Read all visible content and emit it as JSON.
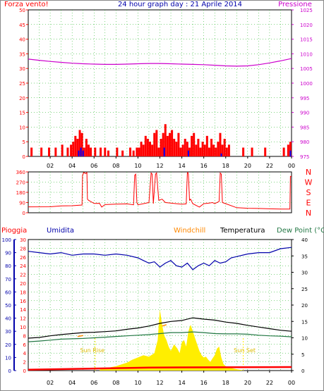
{
  "title": "24 hour graph day : 21 Aprile 2014",
  "x_ticks": [
    "02",
    "04",
    "06",
    "08",
    "10",
    "12",
    "14",
    "16",
    "18",
    "20",
    "22",
    "00"
  ],
  "colors": {
    "wind": "#ff0000",
    "gust": "#0000ff",
    "pressure": "#cc00cc",
    "rain_axis": "#ff0000",
    "humidity": "#0000aa",
    "windchill": "#ff8800",
    "temperature": "#000000",
    "dewpoint": "#227744",
    "solar": "#ffee00",
    "grid": "#00aa00"
  },
  "chart_data": [
    {
      "type": "line",
      "title": "24 hour graph day : 21 Aprile 2014",
      "left_label": "Forza vento!",
      "right_label": "Pressione",
      "left_ticks": [
        "0",
        "5",
        "10",
        "15",
        "20",
        "25",
        "30",
        "35",
        "40",
        "45",
        "50"
      ],
      "right_ticks": [
        "975",
        "980",
        "985",
        "990",
        "995",
        "1000",
        "1005",
        "1010",
        "1015",
        "1020",
        "1025"
      ],
      "ylim_left": [
        0,
        50
      ],
      "ylim_right": [
        975,
        1025
      ],
      "xlim": [
        0,
        24
      ],
      "series": [
        {
          "name": "Pressione",
          "axis": "right",
          "x": [
            0,
            1,
            2,
            3,
            4,
            5,
            6,
            7,
            8,
            9,
            10,
            11,
            12,
            13,
            14,
            15,
            16,
            17,
            18,
            19,
            20,
            21,
            22,
            23,
            24
          ],
          "values": [
            1008.2,
            1007.8,
            1007.4,
            1007.1,
            1006.8,
            1006.6,
            1006.5,
            1006.4,
            1006.4,
            1006.5,
            1006.6,
            1006.7,
            1006.7,
            1006.6,
            1006.5,
            1006.4,
            1006.3,
            1006.1,
            1005.9,
            1005.8,
            1005.9,
            1006.3,
            1006.9,
            1007.6,
            1008.4
          ]
        },
        {
          "axis": "left",
          "style": "bars",
          "x": [
            0.3,
            1.2,
            1.9,
            2.5,
            3.1,
            3.6,
            3.9,
            4.1,
            4.3,
            4.5,
            4.7,
            4.9,
            5.1,
            5.3,
            5.5,
            5.7,
            6.1,
            6.6,
            7.0,
            7.3,
            8.1,
            8.6,
            9.3,
            9.6,
            9.9,
            10.1,
            10.3,
            10.5,
            10.7,
            10.9,
            11.1,
            11.3,
            11.5,
            11.7,
            11.9,
            12.1,
            12.3,
            12.5,
            12.7,
            12.9,
            13.1,
            13.3,
            13.5,
            13.7,
            13.9,
            14.1,
            14.3,
            14.5,
            14.7,
            14.9,
            15.1,
            15.3,
            15.5,
            15.7,
            15.9,
            16.1,
            16.3,
            16.5,
            16.7,
            16.9,
            17.1,
            17.3,
            17.5,
            17.7,
            17.9,
            18.1,
            18.3,
            19.6,
            20.4,
            21.6,
            23.3,
            23.7,
            23.9
          ],
          "values": [
            3,
            3,
            3,
            3,
            4,
            3,
            4,
            5,
            7,
            6,
            9,
            8,
            3,
            6,
            4,
            3,
            3,
            3,
            3,
            2,
            3,
            2,
            3,
            2,
            3,
            3,
            5,
            4,
            7,
            6,
            5,
            4,
            8,
            9,
            3,
            6,
            8,
            11,
            7,
            8,
            9,
            6,
            5,
            8,
            3,
            4,
            6,
            5,
            3,
            7,
            8,
            4,
            6,
            3,
            5,
            4,
            7,
            3,
            6,
            4,
            3,
            5,
            8,
            4,
            6,
            3,
            4,
            3,
            3,
            3,
            3,
            4,
            5
          ]
        },
        {
          "axis": "left",
          "style": "bars",
          "x": [
            4.6,
            4.8,
            5.0,
            12.4,
            14.6,
            17.6,
            23.9
          ],
          "values": [
            2,
            3,
            2,
            3,
            2,
            1,
            2
          ]
        }
      ]
    },
    {
      "type": "line",
      "right_label": [
        "N",
        "W",
        "S",
        "E",
        "N"
      ],
      "left_ticks": [
        "0",
        "90",
        "180",
        "270",
        "360"
      ],
      "ylim": [
        0,
        360
      ],
      "xlim": [
        0,
        24
      ],
      "series": [
        {
          "x": [
            0.0,
            2.0,
            3.0,
            4.0,
            4.9,
            4.95,
            5.0,
            5.05,
            5.25,
            5.35,
            5.4,
            5.5,
            6.0,
            6.5,
            6.7,
            7.0,
            8.0,
            9.0,
            9.6,
            9.7,
            9.8,
            9.9,
            10.0,
            10.5,
            11.0,
            11.2,
            11.3,
            11.4,
            11.6,
            11.7,
            11.9,
            12.2,
            12.5,
            13.0,
            13.5,
            14.0,
            14.4,
            14.5,
            14.55,
            14.6,
            14.7,
            14.8,
            15.0,
            15.4,
            15.6,
            16.0,
            16.5,
            16.8,
            17.0,
            17.4,
            17.5,
            17.6,
            17.7,
            18.0,
            19.0,
            20.0,
            21.0,
            22.0,
            23.0,
            23.85,
            23.9,
            24.0
          ],
          "values": [
            52,
            53,
            60,
            62,
            68,
            330,
            340,
            355,
            345,
            355,
            120,
            110,
            82,
            83,
            50,
            72,
            76,
            78,
            70,
            330,
            340,
            90,
            70,
            80,
            90,
            350,
            340,
            80,
            340,
            350,
            110,
            120,
            90,
            85,
            80,
            75,
            78,
            350,
            355,
            340,
            110,
            120,
            80,
            60,
            50,
            80,
            85,
            90,
            80,
            100,
            350,
            340,
            90,
            80,
            45,
            40,
            38,
            35,
            33,
            33,
            320,
            320
          ]
        }
      ]
    },
    {
      "type": "line",
      "left_label": "Pioggia",
      "labels": [
        "Umidita",
        "Windchill",
        "Temperatura",
        "Dew Point (°C"
      ],
      "rain_ticks": [
        "0",
        "2",
        "4",
        "6",
        "8",
        "10",
        "12",
        "14",
        "16",
        "18",
        "20",
        "22",
        "24",
        "26",
        "28",
        "30"
      ],
      "humidity_ticks": [
        "0",
        "10",
        "20",
        "30",
        "40",
        "50",
        "60",
        "70",
        "80",
        "90",
        "100"
      ],
      "temp_ticks": [
        "0",
        "5",
        "10",
        "15",
        "20",
        "25",
        "30",
        "35",
        "40"
      ],
      "sunrise_label": "Sun Rise",
      "sunset_label": "Sun Set",
      "ylim_rain": [
        0,
        30
      ],
      "ylim_humidity": [
        0,
        100
      ],
      "ylim_temp": [
        0,
        40
      ],
      "xlim": [
        0,
        24
      ],
      "series": [
        {
          "name": "Umidita",
          "axis": "humidity",
          "x": [
            0,
            1,
            2,
            3,
            4,
            5,
            6,
            7,
            8,
            9,
            10,
            10.5,
            11,
            11.5,
            12,
            12.5,
            13,
            13.5,
            14,
            14.5,
            15,
            15.5,
            16,
            16.5,
            17,
            17.5,
            18,
            18.5,
            19,
            20,
            21,
            22,
            23,
            24
          ],
          "values": [
            91,
            90,
            89,
            90,
            88,
            89,
            89,
            88,
            89,
            88,
            86,
            84,
            82,
            83,
            79,
            82,
            84,
            80,
            79,
            82,
            77,
            80,
            82,
            80,
            84,
            82,
            83,
            86,
            87,
            89,
            90,
            90,
            93,
            94
          ]
        },
        {
          "name": "Temperatura",
          "axis": "temp",
          "x": [
            0,
            1,
            2,
            3,
            4,
            5,
            6,
            7,
            8,
            9,
            10,
            11,
            12,
            13,
            14,
            15,
            16,
            17,
            18,
            19,
            20,
            21,
            22,
            23,
            24
          ],
          "values": [
            9.9,
            10.1,
            10.6,
            11.0,
            11.3,
            11.6,
            11.7,
            11.9,
            12.1,
            12.6,
            13.0,
            13.6,
            14.4,
            15.0,
            15.3,
            16.1,
            15.7,
            15.4,
            14.8,
            14.4,
            13.8,
            13.3,
            12.8,
            12.3,
            12.0
          ]
        },
        {
          "name": "Windchill",
          "axis": "temp",
          "x": [
            4.5,
            5.0,
            12.2,
            12.6
          ],
          "values": [
            10.4,
            10.7,
            13.6,
            14.0
          ]
        },
        {
          "name": "Dew Point (°C",
          "axis": "temp",
          "x": [
            0,
            1,
            2,
            3,
            4,
            5,
            6,
            7,
            8,
            9,
            10,
            11,
            12,
            13,
            14,
            15,
            16,
            17,
            18,
            19,
            20,
            21,
            22,
            23,
            24
          ],
          "values": [
            8.8,
            9.0,
            9.3,
            9.6,
            9.7,
            9.8,
            10.0,
            10.2,
            10.4,
            10.6,
            10.8,
            11.0,
            11.3,
            11.6,
            11.6,
            11.8,
            11.6,
            11.3,
            11.2,
            11.2,
            11.1,
            10.8,
            10.6,
            10.5,
            10.3
          ]
        },
        {
          "name": "Solar",
          "axis": "rain",
          "style": "area",
          "x": [
            6.5,
            7,
            8,
            9,
            9.5,
            10,
            10.5,
            11,
            11.5,
            11.8,
            12,
            12.2,
            12.4,
            12.6,
            12.8,
            13,
            13.3,
            13.6,
            13.8,
            14.0,
            14.2,
            14.4,
            14.6,
            14.8,
            15.0,
            15.2,
            15.4,
            15.6,
            15.8,
            16.0,
            16.2,
            16.4,
            16.6,
            16.8,
            17.0,
            17.2,
            17.4,
            17.6,
            17.8,
            18,
            18.5,
            19,
            19.5
          ],
          "values": [
            0.2,
            0.5,
            1.0,
            1.8,
            2.5,
            3.0,
            3.5,
            3.2,
            4.0,
            7.0,
            14.0,
            10.5,
            8.0,
            7.0,
            5.5,
            4.5,
            6.0,
            5.0,
            4.0,
            6.5,
            7.0,
            5.5,
            9.0,
            10.5,
            9.0,
            7.5,
            6.0,
            4.5,
            3.5,
            3.0,
            3.2,
            2.5,
            2.0,
            2.8,
            3.5,
            5.0,
            5.5,
            3.0,
            1.5,
            1.0,
            0.6,
            0.3,
            0.1
          ]
        },
        {
          "name": "Rain",
          "axis": "rain",
          "x": [
            0,
            11,
            24
          ],
          "values": [
            0.2,
            0.7,
            0.8
          ]
        }
      ]
    }
  ]
}
